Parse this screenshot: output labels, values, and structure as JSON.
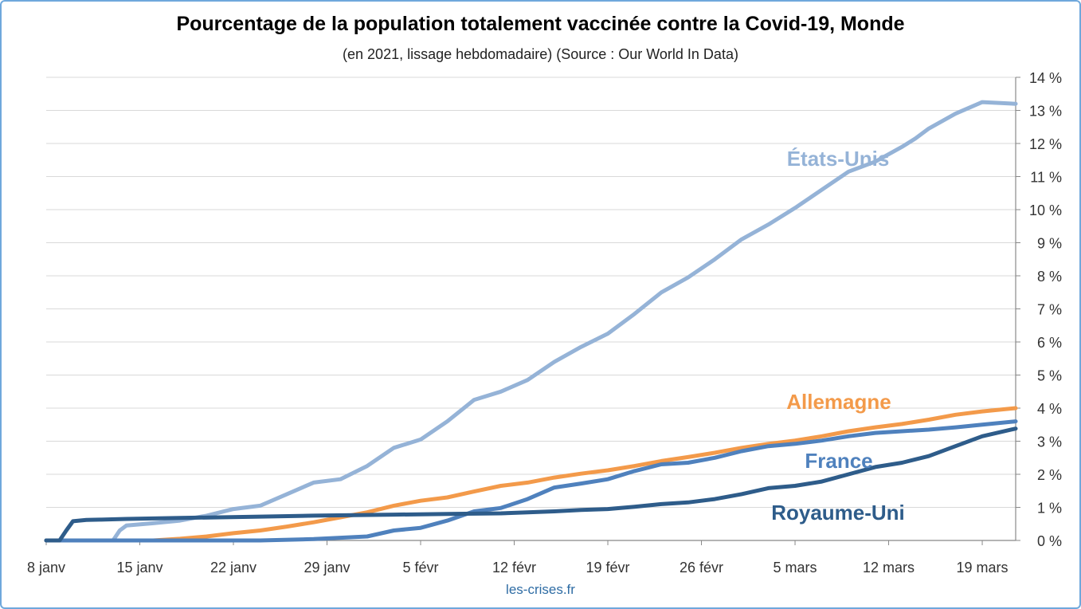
{
  "chart_data": {
    "type": "line",
    "title": "Pourcentage de la population totalement vaccinée contre la Covid-19, Monde",
    "subtitle": "(en 2021, lissage hebdomadaire) (Source : Our World In Data)",
    "source": "les-crises.fr",
    "xlabel": "",
    "ylabel": "",
    "x_tick_labels": [
      "8 janv",
      "15 janv",
      "22 janv",
      "29 janv",
      "5 févr",
      "12 févr",
      "19 févr",
      "26 févr",
      "5 mars",
      "12 mars",
      "19 mars"
    ],
    "y_tick_labels": [
      "0 %",
      "1 %",
      "2 %",
      "3 %",
      "4 %",
      "5 %",
      "6 %",
      "7 %",
      "8 %",
      "9 %",
      "10 %",
      "11 %",
      "12 %",
      "13 %",
      "14 %"
    ],
    "xlim": [
      0,
      72.5
    ],
    "ylim": [
      0,
      14
    ],
    "y_axis_side": "right",
    "grid": "horizontal",
    "legend": "inline labels near line ends",
    "series": [
      {
        "name": "États-Unis",
        "color": "#95b3d7",
        "x": [
          0,
          4,
          5,
          5.5,
          6,
          8,
          10,
          12,
          14,
          16,
          18,
          20,
          22,
          24,
          26,
          28,
          30,
          32,
          34,
          36,
          38,
          40,
          42,
          44,
          46,
          48,
          50,
          52,
          54,
          56,
          58,
          60,
          62,
          64,
          65,
          66,
          68,
          70,
          72.5
        ],
        "y": [
          0,
          0,
          0,
          0.3,
          0.45,
          0.52,
          0.6,
          0.75,
          0.95,
          1.05,
          1.4,
          1.75,
          1.85,
          2.25,
          2.8,
          3.05,
          3.6,
          4.25,
          4.5,
          4.85,
          5.4,
          5.85,
          6.25,
          6.85,
          7.5,
          7.95,
          8.5,
          9.1,
          9.55,
          10.05,
          10.6,
          11.15,
          11.45,
          11.9,
          12.15,
          12.45,
          12.9,
          13.25,
          13.2
        ]
      },
      {
        "name": "Allemagne",
        "color": "#f39a4a",
        "x": [
          0,
          8,
          10,
          12,
          14,
          16,
          18,
          20,
          22,
          24,
          26,
          28,
          30,
          32,
          34,
          36,
          38,
          40,
          42,
          44,
          46,
          48,
          50,
          52,
          54,
          56,
          58,
          60,
          62,
          64,
          66,
          68,
          70,
          72.5
        ],
        "y": [
          0,
          0,
          0.05,
          0.12,
          0.22,
          0.3,
          0.42,
          0.55,
          0.7,
          0.85,
          1.05,
          1.2,
          1.3,
          1.48,
          1.65,
          1.75,
          1.9,
          2.02,
          2.12,
          2.25,
          2.4,
          2.52,
          2.65,
          2.8,
          2.92,
          3.02,
          3.15,
          3.3,
          3.42,
          3.52,
          3.65,
          3.8,
          3.9,
          4.0
        ]
      },
      {
        "name": "France",
        "color": "#4f81bd",
        "x": [
          0,
          16,
          20,
          24,
          26,
          28,
          30,
          32,
          34,
          36,
          38,
          40,
          42,
          44,
          46,
          48,
          50,
          52,
          54,
          56,
          58,
          60,
          62,
          64,
          66,
          68,
          70,
          72.5
        ],
        "y": [
          0,
          0,
          0.04,
          0.12,
          0.3,
          0.38,
          0.6,
          0.88,
          0.98,
          1.25,
          1.6,
          1.72,
          1.85,
          2.1,
          2.3,
          2.35,
          2.5,
          2.7,
          2.85,
          2.92,
          3.02,
          3.15,
          3.25,
          3.3,
          3.35,
          3.42,
          3.5,
          3.6
        ]
      },
      {
        "name": "Royaume-Uni",
        "color": "#2e5c8a",
        "x": [
          0,
          1,
          1.5,
          2,
          3,
          4,
          6,
          10,
          16,
          20,
          26,
          30,
          34,
          36,
          38,
          40,
          42,
          44,
          46,
          48,
          50,
          52,
          54,
          56,
          58,
          60,
          62,
          64,
          66,
          68,
          70,
          72.5
        ],
        "y": [
          0,
          0,
          0.3,
          0.58,
          0.62,
          0.63,
          0.65,
          0.68,
          0.72,
          0.75,
          0.78,
          0.8,
          0.82,
          0.85,
          0.88,
          0.92,
          0.95,
          1.02,
          1.1,
          1.15,
          1.25,
          1.4,
          1.58,
          1.65,
          1.78,
          2.0,
          2.22,
          2.35,
          2.55,
          2.85,
          3.15,
          3.38
        ]
      }
    ]
  }
}
